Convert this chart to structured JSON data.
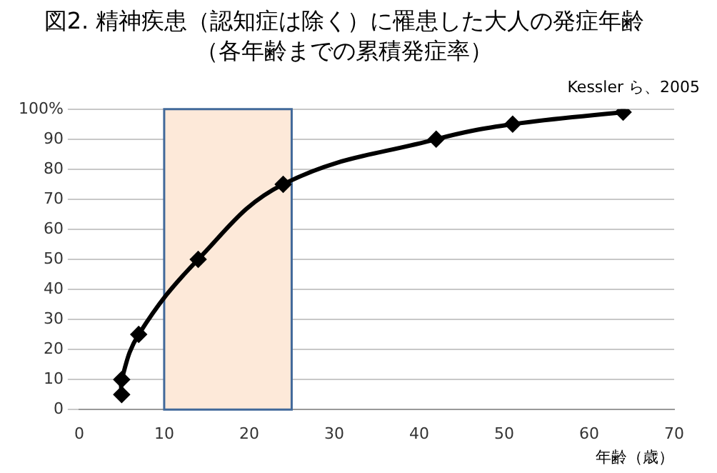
{
  "chart_data": {
    "type": "line",
    "title": "図2. 精神疾患（認知症は除く）に罹患した大人の発症年齢",
    "subtitle": "（各年齢までの累積発症率）",
    "xlabel": "年齢（歳）",
    "annotations": [
      "Kessler ら、2005"
    ],
    "x": [
      5,
      5,
      7,
      14,
      24,
      42,
      51,
      64
    ],
    "series": [
      {
        "color": "#000000",
        "values": [
          5,
          10,
          25,
          50,
          75,
          90,
          95,
          99
        ]
      }
    ],
    "xlim": [
      0,
      70
    ],
    "xticks": [
      0,
      10,
      20,
      30,
      40,
      50,
      60,
      70
    ],
    "ylim": [
      0,
      100
    ],
    "yticks": [
      0,
      10,
      20,
      30,
      40,
      50,
      60,
      70,
      80,
      90,
      {
        "value": 100,
        "label": "100%"
      }
    ],
    "bands": [
      {
        "axis": "x",
        "from": 10,
        "to": 25,
        "color": "#fde9d9"
      }
    ],
    "grid": "y",
    "marker": "diamond",
    "line_style": "solid",
    "legend": false
  }
}
